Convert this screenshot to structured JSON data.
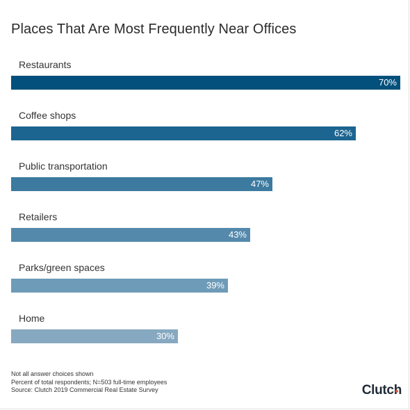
{
  "chart_data": {
    "type": "bar",
    "orientation": "horizontal",
    "title": "Places That Are Most Frequently Near Offices",
    "categories": [
      "Restaurants",
      "Coffee shops",
      "Public transportation",
      "Retailers",
      "Parks/green spaces",
      "Home"
    ],
    "values": [
      70,
      62,
      47,
      43,
      39,
      30
    ],
    "data_labels": [
      "70%",
      "62%",
      "47%",
      "43%",
      "39%",
      "30%"
    ],
    "unit": "%",
    "xlim": [
      0,
      70
    ],
    "grid": false,
    "legend": "none",
    "colors": [
      "#03507c",
      "#1c6590",
      "#3c7a9f",
      "#5489ab",
      "#6e9bb7",
      "#86a8c0"
    ]
  },
  "notes": [
    "Not all answer choices shown",
    "Percent of total respondents; N=503 full-time employees",
    "Source: Clutch 2019 Commercial Real Estate Survey"
  ],
  "brand": {
    "logo_text": "Clutch"
  }
}
